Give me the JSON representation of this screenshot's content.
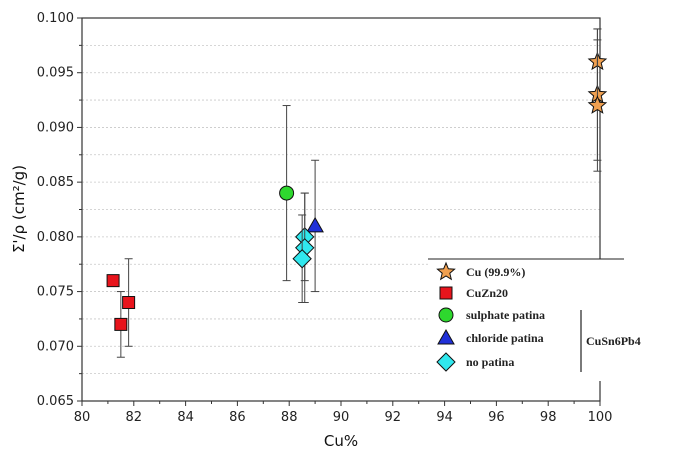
{
  "chart_data": {
    "type": "scatter",
    "xlabel": "Cu%",
    "ylabel": "Σ'/ρ (cm²/g)",
    "xlim": [
      80,
      100
    ],
    "ylim": [
      0.065,
      0.1
    ],
    "x_ticks": [
      "80",
      "82",
      "84",
      "86",
      "88",
      "90",
      "92",
      "94",
      "96",
      "98",
      "100"
    ],
    "y_ticks": [
      "0.065",
      "0.070",
      "0.075",
      "0.080",
      "0.085",
      "0.090",
      "0.095",
      "0.100"
    ],
    "grid": "horizontal dotted",
    "legend_position": "lower-right",
    "group_label": "CuSn6Pb4",
    "series": [
      {
        "name": "Cu (99.9%)",
        "marker": "star",
        "color": "#F0A050",
        "points": [
          {
            "x": 99.9,
            "y": 0.096,
            "err": 0.003
          },
          {
            "x": 99.9,
            "y": 0.093,
            "err": 0.006
          },
          {
            "x": 99.9,
            "y": 0.092,
            "err": 0.006
          }
        ]
      },
      {
        "name": "CuZn20",
        "marker": "square",
        "color": "#E8141C",
        "points": [
          {
            "x": 81.2,
            "y": 0.076,
            "err": null
          },
          {
            "x": 81.8,
            "y": 0.074,
            "err": 0.004
          },
          {
            "x": 81.5,
            "y": 0.072,
            "err": 0.003
          }
        ]
      },
      {
        "name": "sulphate patina",
        "marker": "circle",
        "color": "#2ED82E",
        "points": [
          {
            "x": 87.9,
            "y": 0.084,
            "err": 0.008
          }
        ]
      },
      {
        "name": "chloride patina",
        "marker": "triangle",
        "color": "#2030D8",
        "points": [
          {
            "x": 89.0,
            "y": 0.081,
            "err": 0.006
          }
        ]
      },
      {
        "name": "no patina",
        "marker": "diamond",
        "color": "#30E8EE",
        "points": [
          {
            "x": 88.6,
            "y": 0.08,
            "err": 0.004
          },
          {
            "x": 88.6,
            "y": 0.079,
            "err": 0.005
          },
          {
            "x": 88.5,
            "y": 0.078,
            "err": 0.004
          }
        ]
      }
    ]
  }
}
